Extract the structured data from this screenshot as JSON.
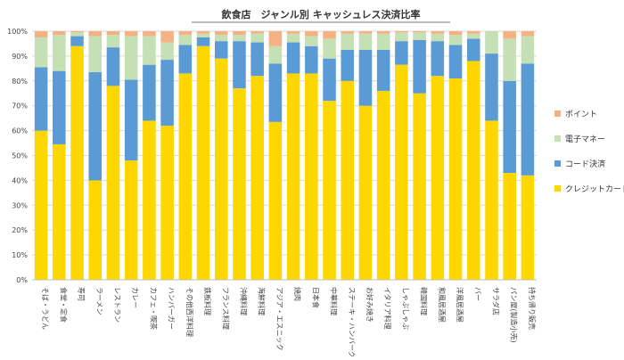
{
  "chart_data": {
    "type": "bar",
    "stacked": true,
    "percent_stacked": true,
    "title": "飲食店　ジャンル別 キャッシュレス決済比率",
    "ylim": [
      0,
      100
    ],
    "yticks": [
      "0%",
      "10%",
      "20%",
      "30%",
      "40%",
      "50%",
      "60%",
      "70%",
      "80%",
      "90%",
      "100%"
    ],
    "grid": true,
    "legend_position": "right",
    "categories": [
      "そば・うどん",
      "食堂・定食",
      "寿司",
      "ラーメン",
      "レストラン",
      "カレー",
      "カフェ・喫茶",
      "ハンバーガー",
      "その他西洋料理",
      "鉄板料理",
      "フランス料理",
      "沖縄料理",
      "海鮮料理",
      "アジア・エスニック",
      "焼肉",
      "日本食",
      "中華料理",
      "ステーキ・ハンバーグ",
      "お好み焼き",
      "イタリア料理",
      "しゃぶしゃぶ",
      "韓国料理",
      "和風居酒屋",
      "洋風居酒屋",
      "バー",
      "サラダ店",
      "パン屋(製造小売)",
      "持ち帰り販売"
    ],
    "series": [
      {
        "name": "クレジットカード",
        "color": "#FFD700",
        "values": [
          60,
          54.5,
          94,
          40,
          78,
          48,
          64,
          62,
          83,
          94,
          89,
          77,
          82,
          63.5,
          83,
          83,
          72,
          80,
          70,
          76,
          86.5,
          75,
          82,
          81,
          88,
          64,
          43,
          42
        ]
      },
      {
        "name": "コード決済",
        "color": "#5B9BD5",
        "values": [
          25.5,
          29.5,
          4,
          43.5,
          15.5,
          32.5,
          22.5,
          26.5,
          11.5,
          3.5,
          7,
          19,
          13.5,
          23.5,
          12.5,
          11,
          17,
          12.5,
          22.5,
          16.5,
          9.5,
          21.5,
          14,
          13.5,
          9,
          27,
          37,
          45
        ]
      },
      {
        "name": "電子マネー",
        "color": "#C5E0B4",
        "values": [
          12,
          14.5,
          1.5,
          14.5,
          5,
          17.5,
          11.5,
          7,
          4,
          1.5,
          2.5,
          2.5,
          3.5,
          7,
          3.5,
          4,
          8,
          6.5,
          6.5,
          6.5,
          3.5,
          3,
          3,
          4,
          2,
          9,
          17,
          11
        ]
      },
      {
        "name": "ポイント",
        "color": "#F4B183",
        "values": [
          2.5,
          1.5,
          0.5,
          2,
          1.5,
          2,
          2,
          4.5,
          1.5,
          1,
          1.5,
          1.5,
          1,
          6,
          1,
          2,
          3,
          1,
          1,
          1,
          0.5,
          0.5,
          1,
          1.5,
          1,
          0,
          3,
          2
        ]
      }
    ],
    "legend_order": [
      "ポイント",
      "電子マネー",
      "コード決済",
      "クレジットカード"
    ]
  }
}
